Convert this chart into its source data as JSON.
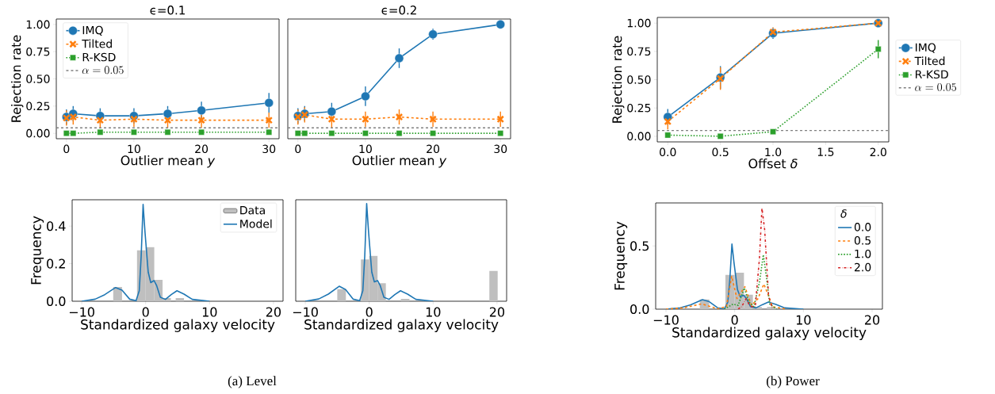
{
  "chart_data": [
    {
      "type": "line",
      "title": "ϵ=0.1",
      "xlabel": "Outlier mean *y*",
      "ylabel": "Rejection rate",
      "x": [
        0,
        1,
        5,
        10,
        15,
        20,
        30
      ],
      "xlim": [
        -1.5,
        31.5
      ],
      "ylim": [
        -0.05,
        1.05
      ],
      "xticks": [
        0,
        10,
        20,
        30
      ],
      "yticks": [
        {
          "value": 0,
          "label": "0.00"
        },
        {
          "value": 0.25,
          "label": "0.25"
        },
        {
          "value": 0.5,
          "label": "0.50"
        },
        {
          "value": 0.75,
          "label": "0.75"
        },
        {
          "value": 1,
          "label": "1.00"
        }
      ],
      "legend": "top left",
      "series": [
        {
          "name": "IMQ",
          "color": "#1f77b4",
          "marker": "circle",
          "line_style": "solid",
          "values": [
            0.15,
            0.18,
            0.16,
            0.16,
            0.18,
            0.21,
            0.28
          ],
          "errors": [
            0.07,
            0.07,
            0.07,
            0.07,
            0.07,
            0.08,
            0.09
          ]
        },
        {
          "name": "Tilted",
          "color": "#ff7f0e",
          "marker": "cross",
          "line_style": "dashed",
          "values": [
            0.14,
            0.15,
            0.12,
            0.13,
            0.12,
            0.12,
            0.12
          ],
          "errors": [
            0.07,
            0.07,
            0.07,
            0.07,
            0.07,
            0.07,
            0.07
          ]
        },
        {
          "name": "R-KSD",
          "color": "#2ca02c",
          "marker": "square",
          "line_style": "dotted",
          "values": [
            0,
            0,
            0.01,
            0.01,
            0.01,
            0.01,
            0.01
          ]
        }
      ],
      "ref_lines": [
        {
          "axis": "y",
          "value": 0.05,
          "label": "\\alpha=0.05",
          "color": "#808080",
          "line_style": "dashed"
        }
      ]
    },
    {
      "type": "line",
      "title": "ϵ=0.2",
      "xlabel": "Outlier mean *y*",
      "x": [
        0,
        1,
        5,
        10,
        15,
        20,
        30
      ],
      "xlim": [
        -1.5,
        31.5
      ],
      "ylim": [
        -0.05,
        1.05
      ],
      "xticks": [
        0,
        10,
        20,
        30
      ],
      "tick_labels": "x",
      "series": [
        {
          "color": "#1f77b4",
          "marker": "circle",
          "line_style": "solid",
          "values": [
            0.16,
            0.18,
            0.2,
            0.34,
            0.69,
            0.91,
            1.0
          ],
          "errors": [
            0.07,
            0.07,
            0.08,
            0.09,
            0.09,
            0.05,
            null
          ]
        },
        {
          "color": "#ff7f0e",
          "marker": "cross",
          "line_style": "dashed",
          "values": [
            0.15,
            0.17,
            0.13,
            0.13,
            0.15,
            0.13,
            0.13
          ],
          "errors": [
            0.07,
            0.07,
            0.08,
            0.07,
            0.07,
            0.07,
            0.07
          ]
        },
        {
          "color": "#2ca02c",
          "marker": "square",
          "line_style": "dotted",
          "values": [
            0,
            0,
            0,
            0,
            0,
            0,
            0
          ]
        }
      ],
      "ref_lines": [
        {
          "axis": "y",
          "value": 0.05,
          "color": "#808080",
          "line_style": "dashed"
        }
      ]
    },
    {
      "type": "line",
      "xlabel": "Offset *δ*",
      "ylabel": "Rejection rate",
      "x": [
        0,
        0.5,
        1,
        2
      ],
      "xlim": [
        -0.1,
        2.1
      ],
      "ylim": [
        -0.05,
        1.05
      ],
      "xticks": [
        {
          "value": 0,
          "label": "0.0"
        },
        {
          "value": 0.5,
          "label": "0.5"
        },
        {
          "value": 1,
          "label": "1.0"
        },
        {
          "value": 1.5,
          "label": "1.5"
        },
        {
          "value": 2,
          "label": "2.0"
        }
      ],
      "yticks": [
        {
          "value": 0,
          "label": "0.00"
        },
        {
          "value": 0.25,
          "label": "0.25"
        },
        {
          "value": 0.5,
          "label": "0.50"
        },
        {
          "value": 0.75,
          "label": "0.75"
        },
        {
          "value": 1,
          "label": "1.00"
        }
      ],
      "legend": "right",
      "series": [
        {
          "name": "IMQ",
          "color": "#1f77b4",
          "marker": "circle",
          "line_style": "solid",
          "values": [
            0.17,
            0.52,
            0.91,
            1.0
          ],
          "errors": [
            0.07,
            0.1,
            0.05,
            null
          ]
        },
        {
          "name": "Tilted",
          "color": "#ff7f0e",
          "marker": "cross",
          "line_style": "dashed",
          "values": [
            0.13,
            0.51,
            0.92,
            1.0
          ],
          "errors": [
            0.07,
            0.1,
            0.04,
            null
          ]
        },
        {
          "name": "R-KSD",
          "color": "#2ca02c",
          "marker": "square",
          "line_style": "dotted",
          "values": [
            0.01,
            0,
            0.04,
            0.77
          ],
          "errors": [
            null,
            null,
            0.02,
            0.08
          ]
        }
      ],
      "ref_lines": [
        {
          "axis": "y",
          "value": 0.05,
          "label": "\\alpha=0.05",
          "color": "#808080",
          "line_style": "dashed"
        }
      ]
    },
    {
      "type": "histogram",
      "xlabel": "Standardized galaxy velocity",
      "ylabel": "Frequency",
      "xlim": [
        -11.5,
        21.5
      ],
      "ylim": [
        0,
        0.54
      ],
      "xticks": [
        {
          "value": -10,
          "label": "−10"
        },
        0,
        10,
        20
      ],
      "yticks": [
        {
          "value": 0,
          "label": "0.0"
        },
        {
          "value": 0.2,
          "label": "0.2"
        },
        {
          "value": 0.4,
          "label": "0.4"
        }
      ],
      "legend": "top right",
      "annotations": [
        "(a) Level"
      ],
      "series": [
        {
          "type": "histogram",
          "name": "Data",
          "color": "#bfbfbf",
          "bins": [
            -5.1,
            -3.7,
            -1.35,
            0,
            1.35,
            2.65,
            3.95,
            4.7,
            6.0
          ],
          "values": [
            0.076,
            0,
            0.271,
            0.288,
            0.114,
            0.017,
            0,
            0.017
          ]
        },
        {
          "type": "line",
          "name": "Model",
          "color": "#1f77b4",
          "x": [
            -10,
            -7.9,
            -6.4,
            -4.7,
            -3.7,
            -2.5,
            -1.5,
            -1.0,
            -0.7,
            -0.4,
            -0.1,
            0.4,
            0.8,
            1.3,
            1.7,
            2.3,
            3.1,
            4.0,
            4.9,
            6.0,
            7.3,
            10
          ],
          "values": [
            0,
            0.011,
            0.035,
            0.073,
            0.059,
            0.011,
            0.003,
            0.056,
            0.24,
            0.515,
            0.367,
            0.155,
            0.099,
            0.11,
            0.085,
            0.021,
            0.01,
            0.035,
            0.056,
            0.038,
            0.01,
            0
          ]
        }
      ]
    },
    {
      "type": "histogram",
      "xlabel": "Standardized galaxy velocity",
      "xlim": [
        -11.5,
        21.5
      ],
      "ylim": [
        0,
        0.54
      ],
      "xticks": [
        {
          "value": -10,
          "label": "−10"
        },
        0,
        10,
        20
      ],
      "tick_labels": "x",
      "series": [
        {
          "type": "histogram",
          "color": "#bfbfbf",
          "bins": [
            -5.0,
            -3.65,
            -1.3,
            0,
            1.3,
            2.6,
            4.95,
            6.3,
            18.8,
            20.1
          ],
          "values": [
            0.064,
            0,
            0.223,
            0.241,
            0.096,
            0,
            0.013,
            0,
            0.161
          ]
        },
        {
          "type": "line",
          "color": "#1f77b4",
          "x": [
            -10,
            -7.9,
            -6.4,
            -4.7,
            -3.7,
            -2.5,
            -1.5,
            -1.0,
            -0.7,
            -0.4,
            -0.1,
            0.4,
            0.8,
            1.3,
            1.7,
            2.3,
            3.1,
            4.0,
            4.9,
            6.0,
            7.3,
            10
          ],
          "values": [
            0,
            0.012,
            0.038,
            0.08,
            0.062,
            0.011,
            0.003,
            0.056,
            0.24,
            0.52,
            0.367,
            0.155,
            0.103,
            0.11,
            0.085,
            0.021,
            0.01,
            0.035,
            0.056,
            0.038,
            0.01,
            0
          ]
        }
      ]
    },
    {
      "type": "histogram",
      "xlabel": "Standardized galaxy velocity",
      "ylabel": "Frequency",
      "xlim": [
        -11.5,
        21.5
      ],
      "ylim": [
        0,
        0.84
      ],
      "xticks": [
        {
          "value": -10,
          "label": "−10"
        },
        0,
        10,
        20
      ],
      "yticks": [
        {
          "value": 0,
          "label": "0.0"
        },
        {
          "value": 0.5,
          "label": "0.5"
        }
      ],
      "legend": "top right",
      "legend_title": "δ",
      "annotations": [
        "(b) Power"
      ],
      "series": [
        {
          "type": "histogram",
          "color": "#bfbfbf",
          "bins": [
            -5.1,
            -3.7,
            -1.35,
            0,
            1.35,
            2.65,
            3.95,
            4.7,
            6.0
          ],
          "values": [
            0.076,
            0,
            0.271,
            0.288,
            0.114,
            0.017,
            0,
            0.017
          ]
        },
        {
          "type": "line",
          "name": "0.0",
          "color": "#1f77b4",
          "line_style": "solid",
          "x": [
            -10,
            -7.9,
            -6.4,
            -4.7,
            -3.7,
            -2.5,
            -1.5,
            -1.0,
            -0.7,
            -0.4,
            -0.1,
            0.4,
            0.8,
            1.3,
            1.7,
            2.3,
            3.1,
            4.0,
            4.9,
            6.0,
            7.3,
            10
          ],
          "values": [
            0,
            0.011,
            0.035,
            0.075,
            0.059,
            0.011,
            0.003,
            0.056,
            0.24,
            0.515,
            0.367,
            0.155,
            0.099,
            0.11,
            0.085,
            0.021,
            0.01,
            0.035,
            0.056,
            0.038,
            0.01,
            0
          ]
        },
        {
          "type": "line",
          "name": "0.5",
          "color": "#ff7f0e",
          "line_style": "dashed",
          "x": [
            -10,
            -7.5,
            -4.8,
            -2.5,
            -1.2,
            -0.44,
            0.33,
            1.48,
            2.44,
            3.4,
            4.24,
            4.93,
            5.5,
            7.6
          ],
          "values": [
            0,
            0.01,
            0.042,
            0.003,
            0.02,
            0.26,
            0.084,
            0.178,
            0.03,
            0.084,
            0.199,
            0.105,
            0.02,
            0
          ]
        },
        {
          "type": "line",
          "name": "1.0",
          "color": "#2ca02c",
          "line_style": "dotted",
          "x": [
            -1.5,
            -0.25,
            0.5,
            1.4,
            2.05,
            2.8,
            3.6,
            4.17,
            4.63,
            5.1,
            6.1
          ],
          "values": [
            0,
            0.04,
            0.03,
            0.167,
            0.06,
            0.02,
            0.21,
            0.43,
            0.25,
            0.04,
            0
          ]
        },
        {
          "type": "line",
          "name": "2.0",
          "color": "#d62728",
          "line_style": "dashdot",
          "x": [
            0.5,
            1.02,
            1.67,
            2.25,
            3.0,
            3.6,
            3.97,
            4.36,
            4.93,
            5.5
          ],
          "values": [
            0,
            0.02,
            0.084,
            0.02,
            0.02,
            0.4,
            0.8,
            0.63,
            0.105,
            0
          ]
        }
      ]
    }
  ]
}
